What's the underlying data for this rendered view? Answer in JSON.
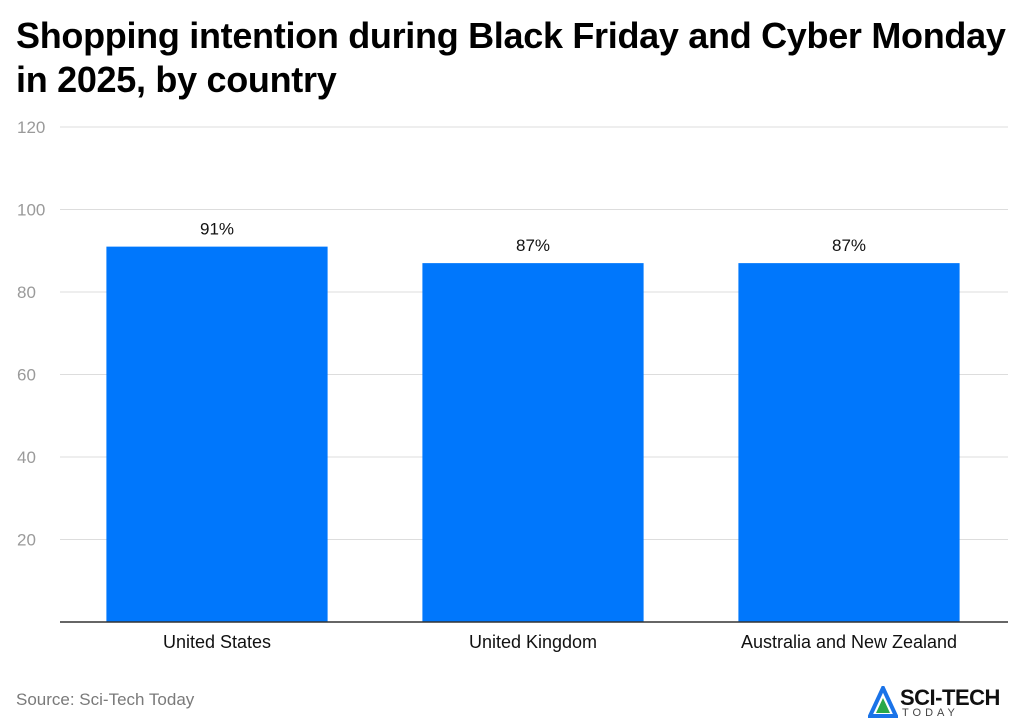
{
  "title": "Shopping intention during Black Friday and Cyber Monday in 2025, by country",
  "source": "Source: Sci-Tech Today",
  "logo": {
    "name": "SCI-TECH",
    "sub": "TODAY"
  },
  "colors": {
    "bar": "#0077fc",
    "grid": "#dddddd",
    "axis": "#333333",
    "tick_text": "#9a9a9a",
    "label_text": "#111111"
  },
  "chart_data": {
    "type": "bar",
    "categories": [
      "United States",
      "United Kingdom",
      "Australia and New Zealand"
    ],
    "values": [
      91,
      87,
      87
    ],
    "data_labels": [
      "91%",
      "87%",
      "87%"
    ],
    "yticks": [
      20,
      40,
      60,
      80,
      100,
      120
    ],
    "ylim": [
      0,
      120
    ],
    "xlabel": "",
    "ylabel": "",
    "grid": true,
    "legend": "none"
  }
}
